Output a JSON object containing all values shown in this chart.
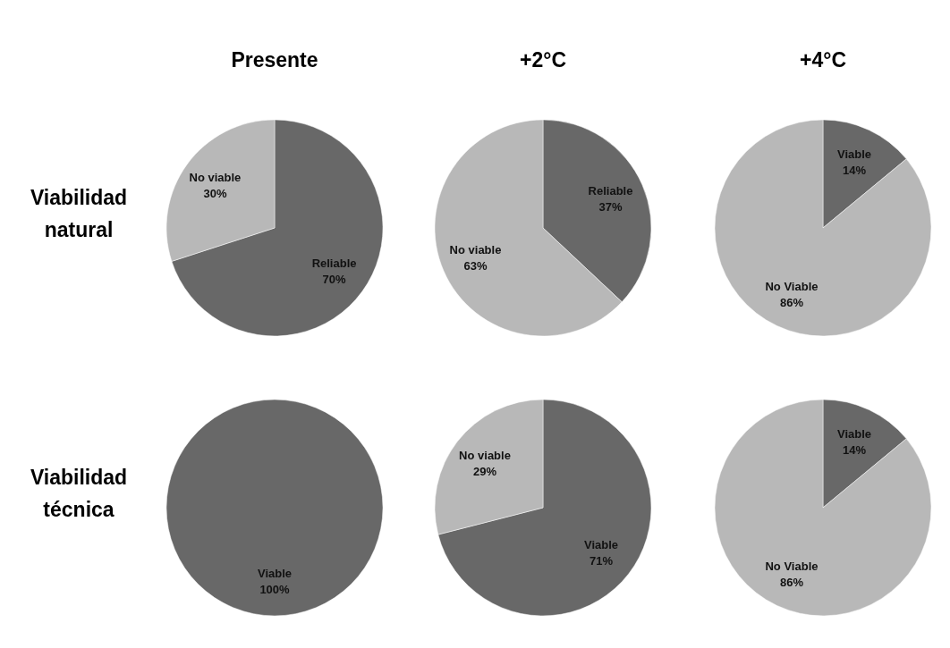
{
  "chart_data": [
    {
      "type": "pie",
      "title": "Presente",
      "ylabel": "Viabilidad natural",
      "categories": [
        "Reliable",
        "No viable"
      ],
      "values": [
        70,
        30
      ],
      "colors": [
        "#686868",
        "#b8b8b8"
      ],
      "data_labels": true,
      "value_labels": [
        "70%",
        "30%"
      ]
    },
    {
      "type": "pie",
      "title": "+2°C",
      "categories": [
        "Reliable",
        "No viable"
      ],
      "values": [
        37,
        63
      ],
      "colors": [
        "#686868",
        "#b8b8b8"
      ],
      "data_labels": true,
      "value_labels": [
        "37%",
        "63%"
      ]
    },
    {
      "type": "pie",
      "title": "+4°C",
      "categories": [
        "Viable",
        "No Viable"
      ],
      "values": [
        14,
        86
      ],
      "colors": [
        "#686868",
        "#b8b8b8"
      ],
      "data_labels": true,
      "value_labels": [
        "14%",
        "86%"
      ]
    },
    {
      "type": "pie",
      "ylabel": "Viabilidad técnica",
      "categories": [
        "Viable"
      ],
      "values": [
        100
      ],
      "colors": [
        "#686868"
      ],
      "data_labels": true,
      "value_labels": [
        "100%"
      ]
    },
    {
      "type": "pie",
      "categories": [
        "Viable",
        "No viable"
      ],
      "values": [
        71,
        29
      ],
      "colors": [
        "#686868",
        "#b8b8b8"
      ],
      "data_labels": true,
      "value_labels": [
        "71%",
        "29%"
      ]
    },
    {
      "type": "pie",
      "categories": [
        "Viable",
        "No Viable"
      ],
      "values": [
        14,
        86
      ],
      "colors": [
        "#686868",
        "#b8b8b8"
      ],
      "data_labels": true,
      "value_labels": [
        "14%",
        "86%"
      ]
    }
  ]
}
